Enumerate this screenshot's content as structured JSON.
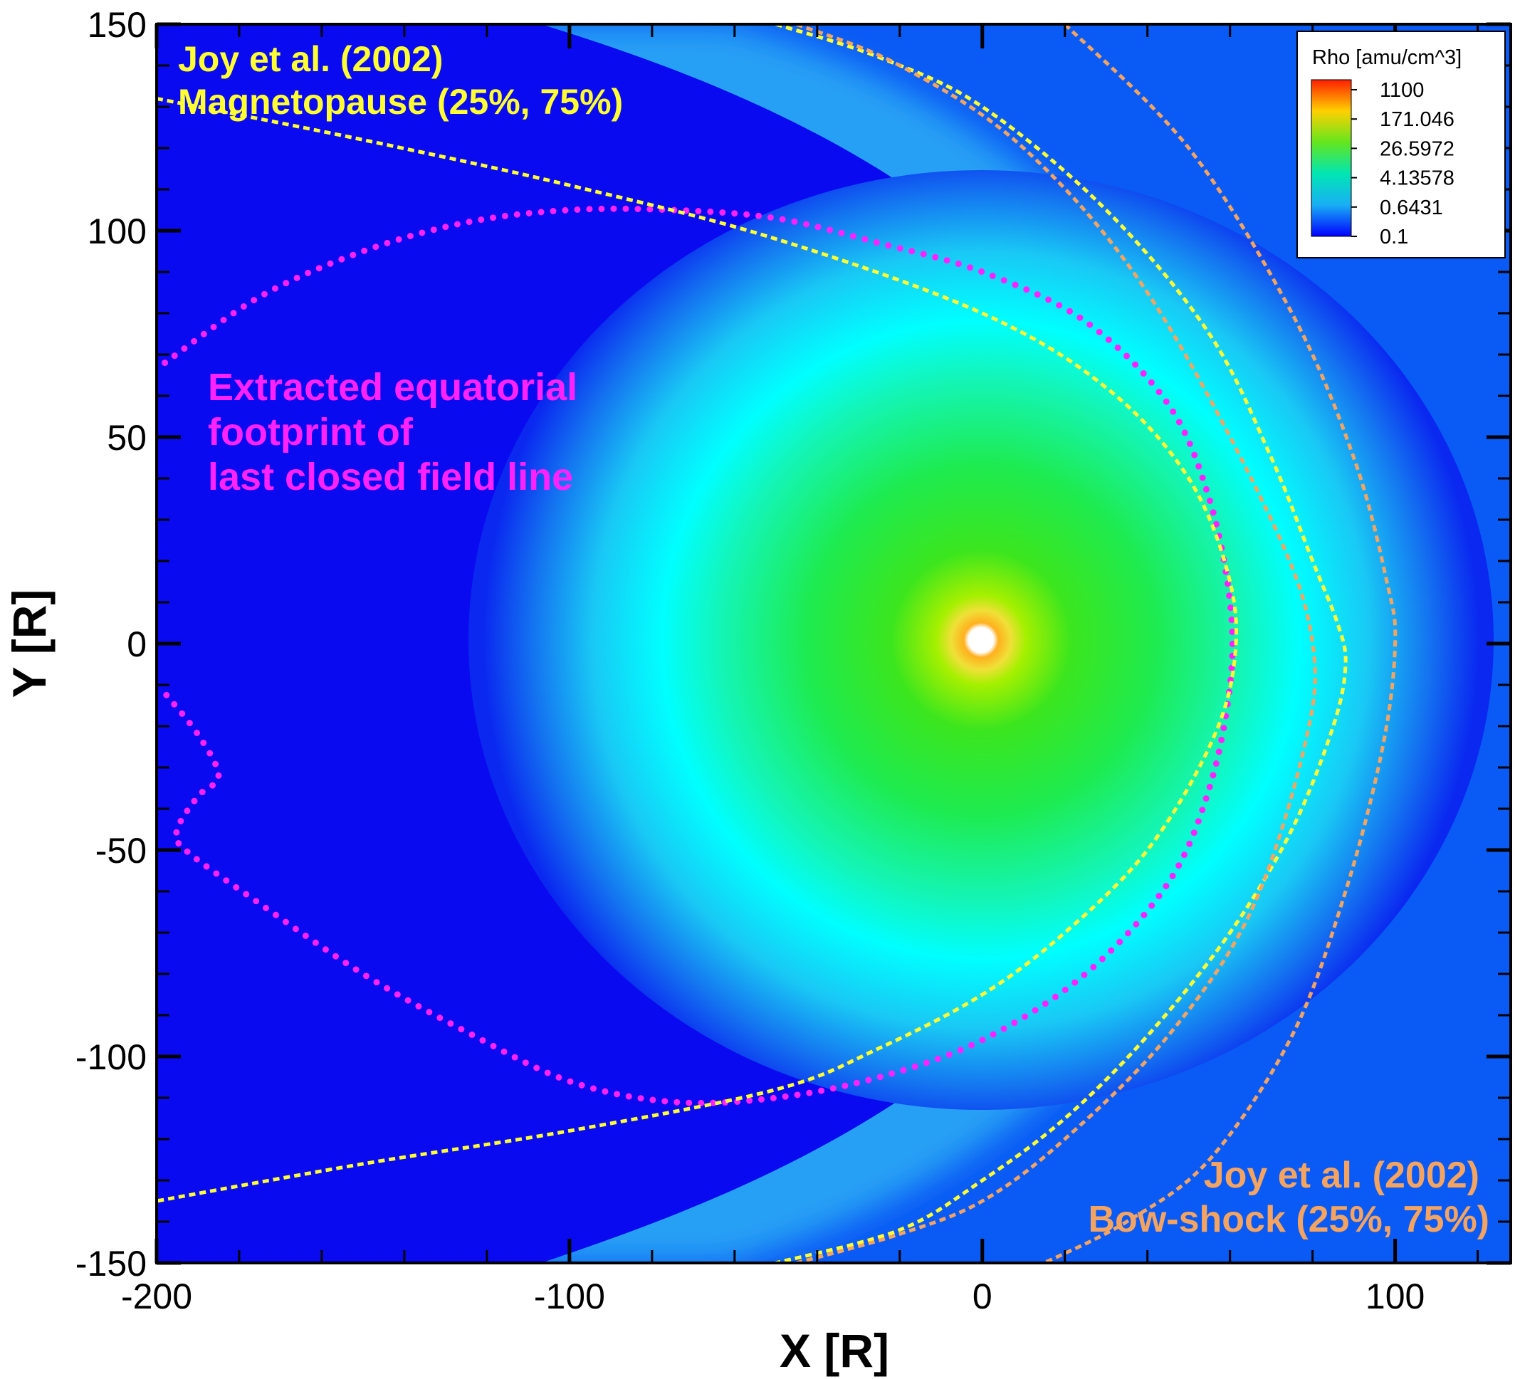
{
  "chart_data": {
    "type": "heatmap",
    "title": "",
    "xlabel": "X [R]",
    "ylabel": "Y [R]",
    "xlim": [
      -200,
      128
    ],
    "ylim": [
      -150,
      150
    ],
    "x_ticks": [
      -200,
      -100,
      0,
      100
    ],
    "x_tick_labels": [
      "-200",
      "-100",
      "0",
      "100"
    ],
    "y_ticks": [
      -150,
      -100,
      -50,
      0,
      50,
      100,
      150
    ],
    "y_tick_labels": [
      "-150",
      "-100",
      "-50",
      "0",
      "50",
      "100",
      "150"
    ],
    "colorbar": {
      "title": "Rho [amu/cm^3]",
      "scale": "log",
      "placement": "top-right",
      "levels": [
        "1100",
        "171.046",
        "26.5972",
        "4.13578",
        "0.6431",
        "0.1"
      ],
      "colors": [
        "#ff1e00",
        "#e0ff00",
        "#12cc12",
        "#00f0d0",
        "#19aff5",
        "#0000ff"
      ]
    },
    "annotations": [
      {
        "lines": [
          "Joy et al. (2002)",
          "Magnetopause (25%, 75%)"
        ],
        "color": "#ffff33",
        "placement": "top-left"
      },
      {
        "lines": [
          "Extracted equatorial",
          "footprint of",
          "last closed field line"
        ],
        "color": "#ff22ff",
        "placement": "left"
      },
      {
        "lines": [
          "Joy et al. (2002)",
          "Bow-shock (25%, 75%)"
        ],
        "color": "#f4a460",
        "placement": "bottom-right"
      }
    ],
    "series": [
      {
        "style": "dotted",
        "color": "#ff22ff",
        "x": [
          -198,
          -175,
          -150,
          -125,
          -100,
          -75,
          -50,
          -25,
          0,
          25,
          45,
          55,
          60,
          60,
          55,
          45,
          25,
          0,
          -25,
          -50,
          -75,
          -100,
          -125,
          -150,
          -175,
          -193,
          -195,
          -190,
          -185,
          -190,
          -198
        ],
        "y": [
          68,
          84,
          95,
          102,
          105,
          105,
          103,
          97,
          90,
          78,
          58,
          35,
          10,
          -10,
          -35,
          -58,
          -80,
          -96,
          -105,
          -110,
          -111,
          -106,
          -94,
          -80,
          -63,
          -50,
          -45,
          -37,
          -32,
          -22,
          -12
        ]
      },
      {
        "style": "dashed",
        "color": "#ffff33",
        "x": [
          -200,
          -150,
          -100,
          -50,
          0,
          30,
          50,
          60,
          61,
          55,
          40,
          20,
          0,
          -25,
          -50,
          -100,
          -150,
          -200
        ],
        "y": [
          132,
          122,
          111,
          98,
          80,
          62,
          40,
          15,
          -5,
          -25,
          -50,
          -70,
          -85,
          -98,
          -108,
          -118,
          -126,
          -135
        ]
      },
      {
        "style": "dashed",
        "color": "#ffff33",
        "x": [
          -50,
          -25,
          0,
          30,
          55,
          70,
          80,
          86,
          88,
          85,
          75,
          60,
          40,
          20,
          0,
          -20,
          -50
        ],
        "y": [
          150,
          142,
          130,
          105,
          75,
          45,
          20,
          5,
          -5,
          -20,
          -45,
          -70,
          -95,
          -115,
          -130,
          -142,
          -150
        ]
      },
      {
        "style": "dashed",
        "color": "#f4a460",
        "x": [
          -45,
          -20,
          10,
          40,
          70,
          80,
          78,
          65,
          45,
          20,
          0,
          -20,
          -45
        ],
        "y": [
          150,
          140,
          120,
          85,
          30,
          0,
          -25,
          -65,
          -95,
          -120,
          -135,
          -143,
          -150
        ]
      },
      {
        "style": "dashed",
        "color": "#f4a460",
        "x": [
          20,
          50,
          75,
          90,
          98,
          100,
          97,
          88,
          75,
          55,
          35,
          15
        ],
        "y": [
          150,
          120,
          80,
          45,
          15,
          0,
          -25,
          -60,
          -95,
          -125,
          -140,
          -150
        ]
      }
    ]
  }
}
